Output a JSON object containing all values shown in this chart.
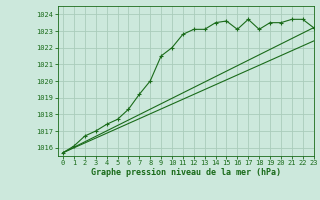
{
  "title": "Graphe pression niveau de la mer (hPa)",
  "bg_color": "#cce8dc",
  "grid_color": "#aaccbb",
  "line_color": "#1a6b1a",
  "xlim": [
    -0.5,
    23
  ],
  "ylim": [
    1015.5,
    1024.5
  ],
  "yticks": [
    1016,
    1017,
    1018,
    1019,
    1020,
    1021,
    1022,
    1023,
    1024
  ],
  "xticks": [
    0,
    1,
    2,
    3,
    4,
    5,
    6,
    7,
    8,
    9,
    10,
    11,
    12,
    13,
    14,
    15,
    16,
    17,
    18,
    19,
    20,
    21,
    22,
    23
  ],
  "main_x": [
    0,
    1,
    2,
    3,
    4,
    5,
    6,
    7,
    8,
    9,
    10,
    11,
    12,
    13,
    14,
    15,
    16,
    17,
    18,
    19,
    20,
    21,
    22,
    23
  ],
  "main_y": [
    1015.7,
    1016.1,
    1016.7,
    1017.0,
    1017.4,
    1017.7,
    1018.3,
    1019.2,
    1020.0,
    1021.5,
    1022.0,
    1022.8,
    1023.1,
    1023.1,
    1023.5,
    1023.6,
    1023.1,
    1023.7,
    1023.1,
    1023.5,
    1023.5,
    1023.7,
    1023.7,
    1023.2
  ],
  "line2_x": [
    0,
    23
  ],
  "line2_y": [
    1015.7,
    1023.2
  ],
  "line3_x": [
    0,
    23
  ],
  "line3_y": [
    1015.7,
    1022.4
  ],
  "xlabel_fontsize": 6.0,
  "tick_fontsize": 5.0,
  "figsize": [
    3.2,
    2.0
  ],
  "dpi": 100
}
